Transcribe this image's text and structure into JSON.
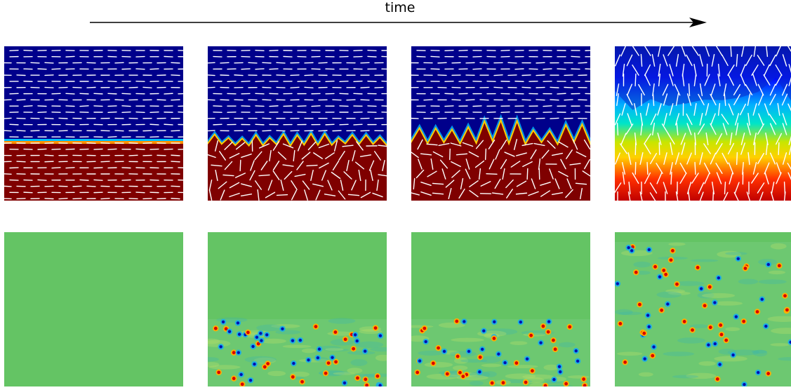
{
  "header": {
    "time_label": "time"
  },
  "colors": {
    "background": "#ffffff",
    "arrow": "#000000",
    "field_top": "#00008b",
    "field_bottom": "#7f0000",
    "defect_background": "#64c464",
    "director_lines": "#ffffff"
  },
  "rows": [
    {
      "name": "director-field-row",
      "frames": 4
    },
    {
      "name": "defect-density-row",
      "frames": 4
    }
  ]
}
